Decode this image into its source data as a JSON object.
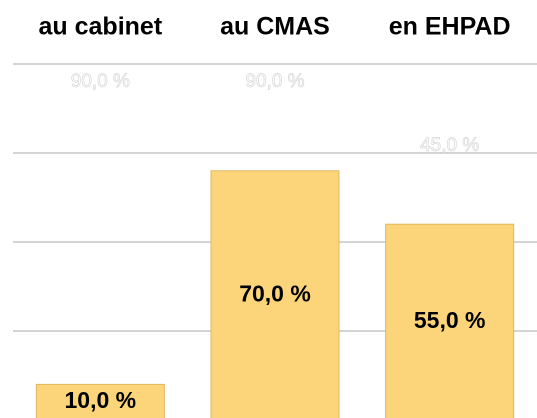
{
  "chart_data": {
    "type": "bar",
    "categories": [
      "au cabinet",
      "au CMAS",
      "en EHPAD"
    ],
    "values": [
      10,
      70,
      55
    ],
    "value_labels": [
      "10,0 %",
      "70,0 %",
      "55,0 %"
    ],
    "annotations": [
      "90,0 %",
      "90,0 %",
      "45,0 %"
    ],
    "color": "#fcd47a",
    "ylim": [
      0,
      100
    ],
    "yticks": [
      25,
      50,
      75,
      100
    ],
    "grid": true
  }
}
